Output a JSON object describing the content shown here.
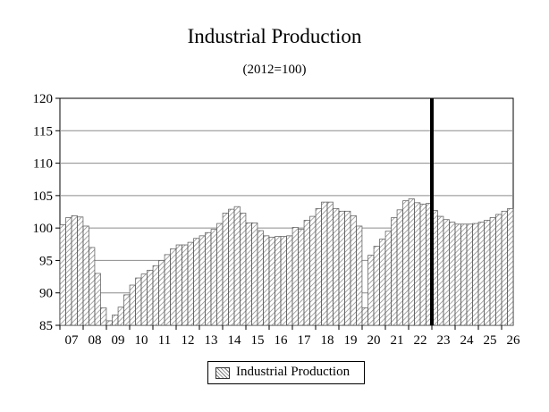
{
  "chart_data": {
    "type": "bar",
    "title": "Industrial Production",
    "subtitle": "(2012=100)",
    "xlabel": "",
    "ylabel": "",
    "ylim": [
      85,
      120
    ],
    "yticks": [
      85,
      90,
      95,
      100,
      105,
      110,
      115,
      120
    ],
    "year_labels": [
      "07",
      "08",
      "09",
      "10",
      "11",
      "12",
      "13",
      "14",
      "15",
      "16",
      "17",
      "18",
      "19",
      "20",
      "21",
      "22",
      "23",
      "24",
      "25",
      "26"
    ],
    "quarters_per_year": 4,
    "forecast_start_index": 64,
    "grid": true,
    "series": [
      {
        "name": "Industrial Production",
        "values": [
          100.5,
          101.6,
          101.9,
          101.7,
          100.3,
          97.0,
          93.0,
          87.7,
          85.7,
          86.6,
          87.8,
          89.7,
          91.2,
          92.3,
          92.9,
          93.5,
          94.2,
          95.0,
          95.9,
          96.8,
          97.4,
          97.4,
          97.8,
          98.4,
          98.8,
          99.3,
          99.8,
          100.7,
          102.3,
          102.9,
          103.3,
          102.3,
          100.8,
          100.8,
          99.6,
          98.8,
          98.6,
          98.7,
          98.7,
          98.8,
          100.1,
          99.8,
          101.2,
          101.8,
          103.0,
          104.0,
          104.0,
          103.0,
          102.6,
          102.6,
          101.9,
          100.3,
          87.7,
          95.8,
          97.2,
          98.3,
          99.5,
          101.6,
          102.8,
          104.2,
          104.5,
          103.9,
          103.7,
          103.8,
          102.7,
          101.8,
          101.3,
          100.9,
          100.6,
          100.6,
          100.6,
          100.7,
          100.9,
          101.2,
          101.6,
          102.1,
          102.6,
          103.0
        ]
      }
    ],
    "legend": [
      "Industrial Production"
    ]
  }
}
